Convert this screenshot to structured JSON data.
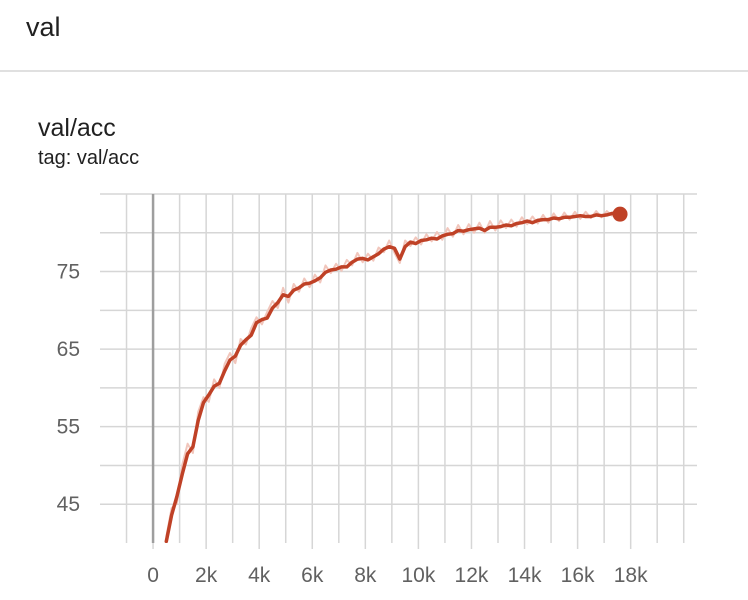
{
  "section": {
    "title": "val"
  },
  "card": {
    "title": "val/acc",
    "tag": "tag: val/acc"
  },
  "colors": {
    "line": "#bf4126",
    "raw_line": "#f1c6bc",
    "grid": "#d6d6d6",
    "zero_axis": "#9e9e9e"
  },
  "chart_data": {
    "type": "line",
    "title": "val/acc",
    "xlabel": "",
    "ylabel": "",
    "xlim": [
      -2000,
      20500
    ],
    "ylim": [
      40,
      85
    ],
    "x_ticks": [
      0,
      2000,
      4000,
      6000,
      8000,
      10000,
      12000,
      14000,
      16000,
      18000
    ],
    "x_tick_labels": [
      "0",
      "2k",
      "4k",
      "6k",
      "8k",
      "10k",
      "12k",
      "14k",
      "16k",
      "18k"
    ],
    "y_ticks": [
      45,
      55,
      65,
      75
    ],
    "y_tick_labels": [
      "45",
      "55",
      "65",
      "75"
    ],
    "grid": true,
    "series": [
      {
        "x": [
          500,
          700,
          900,
          1100,
          1300,
          1500,
          1700,
          1900,
          2100,
          2300,
          2500,
          2700,
          2900,
          3100,
          3300,
          3500,
          3700,
          3900,
          4100,
          4300,
          4500,
          4700,
          4900,
          5100,
          5300,
          5500,
          5700,
          5900,
          6100,
          6300,
          6500,
          6700,
          6900,
          7100,
          7300,
          7500,
          7700,
          7900,
          8100,
          8300,
          8500,
          8700,
          8900,
          9100,
          9300,
          9500,
          9700,
          9900,
          10100,
          10300,
          10500,
          10700,
          10900,
          11100,
          11300,
          11500,
          11700,
          11900,
          12100,
          12300,
          12500,
          12700,
          12900,
          13100,
          13300,
          13500,
          13700,
          13900,
          14100,
          14300,
          14500,
          14700,
          14900,
          15100,
          15300,
          15500,
          15700,
          15900,
          16100,
          16300,
          16500,
          16700,
          16900,
          17100,
          17300,
          17600
        ],
        "y": [
          40.2,
          43.6,
          46.0,
          48.9,
          51.5,
          52.4,
          55.8,
          58.1,
          59.1,
          60.2,
          60.6,
          62.2,
          63.6,
          64.1,
          65.5,
          66.2,
          66.8,
          68.4,
          68.8,
          69.0,
          70.3,
          71.0,
          72.0,
          71.8,
          72.6,
          72.9,
          73.4,
          73.5,
          73.8,
          74.2,
          74.9,
          75.2,
          75.3,
          75.6,
          75.6,
          76.2,
          76.6,
          76.7,
          76.5,
          76.9,
          77.3,
          77.9,
          78.2,
          78.0,
          76.6,
          78.2,
          78.8,
          78.6,
          79.0,
          79.1,
          79.3,
          79.2,
          79.6,
          79.8,
          79.9,
          80.3,
          80.2,
          80.4,
          80.5,
          80.6,
          80.3,
          80.7,
          80.7,
          80.8,
          81.0,
          80.9,
          81.2,
          81.3,
          81.5,
          81.3,
          81.6,
          81.7,
          81.7,
          81.9,
          81.8,
          82.0,
          82.0,
          82.1,
          82.2,
          82.1,
          82.1,
          82.3,
          82.2,
          82.3,
          82.5,
          82.4
        ],
        "raw": [
          40.8,
          44.5,
          45.1,
          50.1,
          52.8,
          51.6,
          56.9,
          58.8,
          58.2,
          61.1,
          60.0,
          63.1,
          64.5,
          63.2,
          66.3,
          65.6,
          67.7,
          69.1,
          68.2,
          69.8,
          71.2,
          70.3,
          72.9,
          71.0,
          73.4,
          72.4,
          74.1,
          73.0,
          74.6,
          73.6,
          75.8,
          74.8,
          76.0,
          75.1,
          76.5,
          75.8,
          77.4,
          76.2,
          77.3,
          76.4,
          78.1,
          77.5,
          79.0,
          77.4,
          76.1,
          79.0,
          78.3,
          79.4,
          78.5,
          79.8,
          78.9,
          80.1,
          79.1,
          80.6,
          79.5,
          81.0,
          79.8,
          81.1,
          80.0,
          81.3,
          80.0,
          81.5,
          80.3,
          81.6,
          80.6,
          81.7,
          80.8,
          82.0,
          81.1,
          82.1,
          81.2,
          82.3,
          81.3,
          82.5,
          81.5,
          82.6,
          81.7,
          82.7,
          81.8,
          82.7,
          81.9,
          82.8,
          82.0,
          82.8,
          82.2,
          82.5
        ]
      }
    ],
    "last_point": {
      "x": 17600,
      "y": 82.4
    }
  }
}
